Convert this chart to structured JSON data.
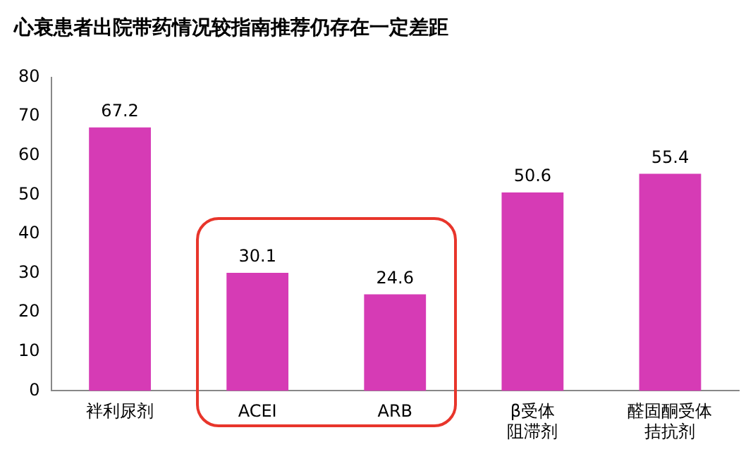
{
  "chart_data": {
    "type": "bar",
    "title": "心衰患者出院带药情况较指南推荐仍存在一定差距",
    "categories": [
      "袢利尿剂",
      "ACEI",
      "ARB",
      "β受体阻滞剂",
      "醛固酮受体拮抗剂"
    ],
    "values": [
      67.2,
      30.1,
      24.6,
      50.6,
      55.4
    ],
    "color": "#d63bb5",
    "ylim": [
      0,
      80
    ],
    "yticks": [
      0,
      10,
      20,
      30,
      40,
      50,
      60,
      70,
      80
    ],
    "grid": false,
    "legend": false,
    "data_labels": true
  }
}
